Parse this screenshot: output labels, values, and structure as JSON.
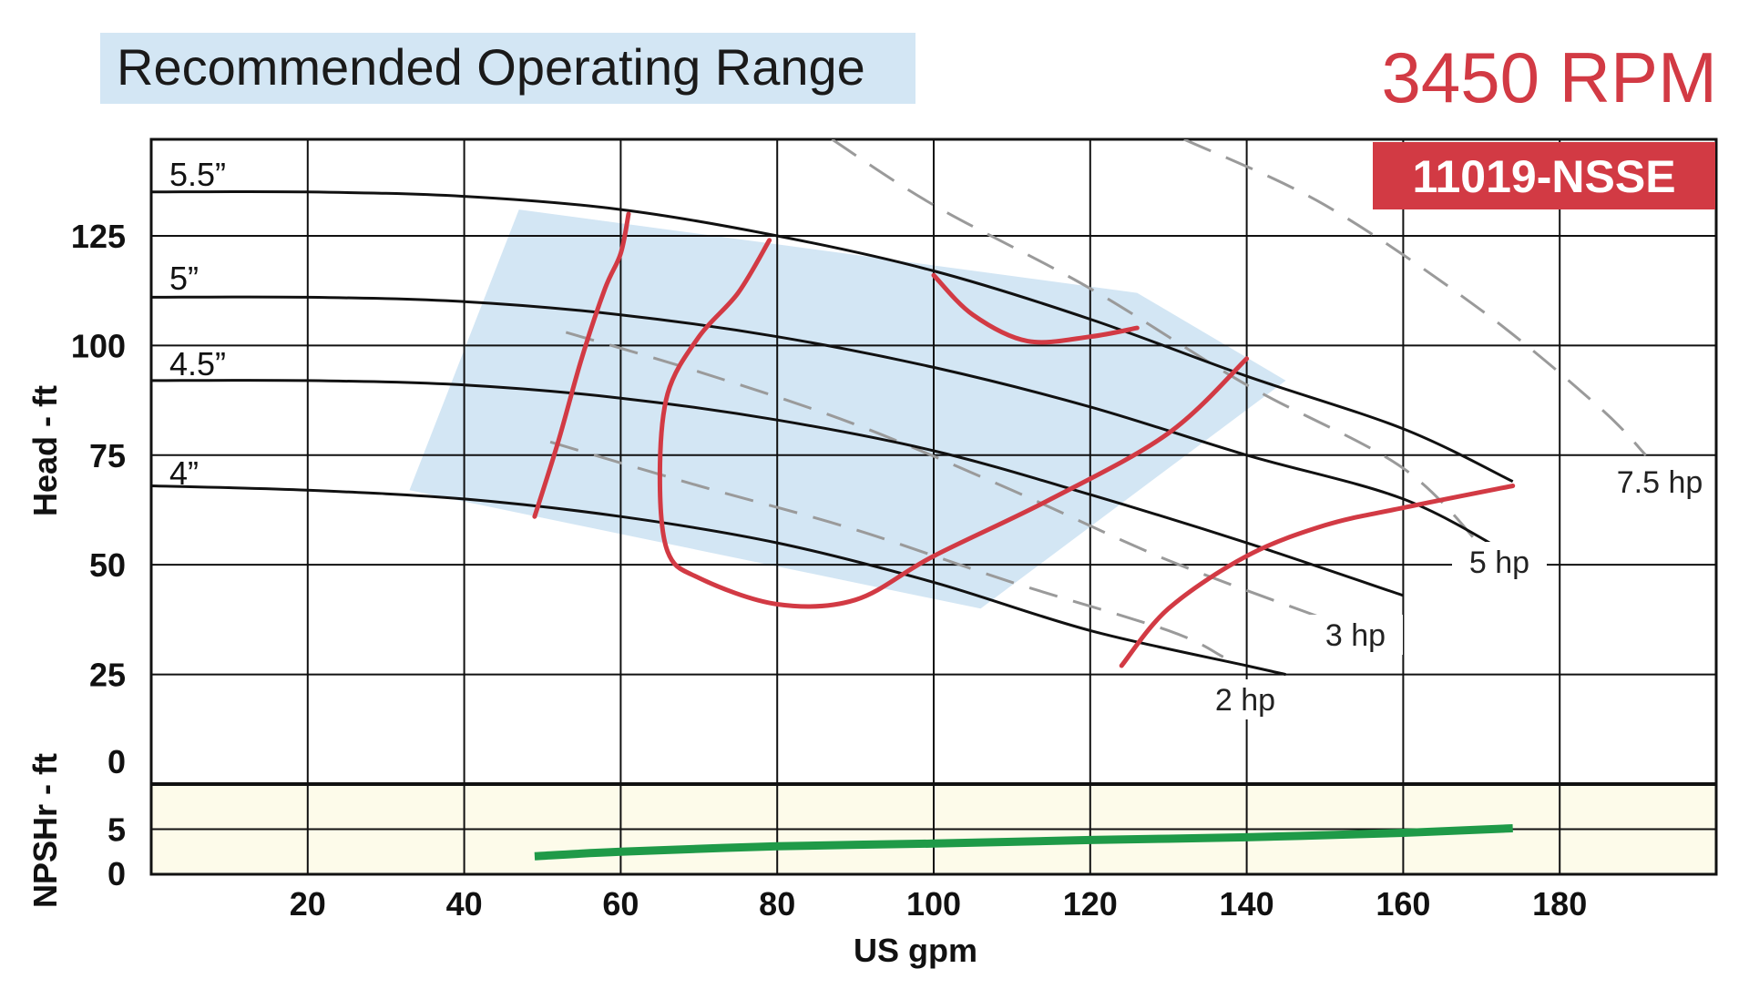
{
  "header": {
    "banner_title": "Recommended Operating Range",
    "rpm": "3450 RPM",
    "model": "11019-NSSE"
  },
  "colors": {
    "banner_bg": "#d3e6f4",
    "operating_region": "#d3e6f4",
    "rpm_text": "#d23a44",
    "model_badge": "#d23a44",
    "efficiency_curves": "#d23a44",
    "impeller_curves": "#111111",
    "power_lines": "#9a9a9a",
    "npsh_bg": "#fdfbea",
    "npsh_curve": "#1f9a48",
    "grid": "#111111"
  },
  "chart_data": {
    "type": "line",
    "xlabel": "US gpm",
    "x_ticks": [
      20,
      40,
      60,
      80,
      100,
      120,
      140,
      160,
      180
    ],
    "xlim": [
      0,
      200
    ],
    "head_panel": {
      "ylabel": "Head - ft",
      "y_ticks": [
        0,
        25,
        50,
        75,
        100,
        125
      ],
      "ylim": [
        0,
        147
      ],
      "grid": true,
      "impeller_curves": [
        {
          "name": "5.5”",
          "points": [
            [
              0,
              135
            ],
            [
              20,
              135
            ],
            [
              40,
              134
            ],
            [
              60,
              131
            ],
            [
              80,
              125
            ],
            [
              100,
              117
            ],
            [
              120,
              106
            ],
            [
              140,
              93
            ],
            [
              160,
              81
            ],
            [
              174,
              69
            ]
          ]
        },
        {
          "name": "5”",
          "points": [
            [
              0,
              111
            ],
            [
              20,
              111
            ],
            [
              40,
              110
            ],
            [
              60,
              107
            ],
            [
              80,
              102
            ],
            [
              100,
              95
            ],
            [
              120,
              86
            ],
            [
              140,
              75
            ],
            [
              160,
              65
            ],
            [
              174,
              52
            ]
          ]
        },
        {
          "name": "4.5”",
          "points": [
            [
              0,
              92
            ],
            [
              20,
              92
            ],
            [
              40,
              91
            ],
            [
              60,
              88
            ],
            [
              80,
              83
            ],
            [
              100,
              76
            ],
            [
              120,
              66
            ],
            [
              140,
              55
            ],
            [
              160,
              43
            ]
          ]
        },
        {
          "name": "4”",
          "points": [
            [
              0,
              68
            ],
            [
              20,
              67
            ],
            [
              40,
              65
            ],
            [
              60,
              61
            ],
            [
              80,
              55
            ],
            [
              100,
              46
            ],
            [
              120,
              35
            ],
            [
              140,
              27
            ],
            [
              145,
              25
            ]
          ]
        }
      ],
      "power_lines": [
        {
          "name": "2 hp",
          "points": [
            [
              51,
              78
            ],
            [
              70,
              68
            ],
            [
              90,
              58
            ],
            [
              110,
              46
            ],
            [
              130,
              35
            ],
            [
              137,
              29
            ]
          ]
        },
        {
          "name": "3 hp",
          "points": [
            [
              53,
              103
            ],
            [
              70,
              94
            ],
            [
              90,
              82
            ],
            [
              110,
              67
            ],
            [
              130,
              51
            ],
            [
              151,
              37
            ]
          ]
        },
        {
          "name": "5 hp",
          "points": [
            [
              87,
              147
            ],
            [
              100,
              132
            ],
            [
              120,
              113
            ],
            [
              140,
              91
            ],
            [
              160,
              72
            ],
            [
              171,
              52
            ]
          ]
        },
        {
          "name": "7.5 hp",
          "points": [
            [
              132,
              147
            ],
            [
              150,
              132
            ],
            [
              170,
              108
            ],
            [
              185,
              86
            ],
            [
              191,
              75
            ]
          ]
        }
      ],
      "efficiency_curves": [
        {
          "points": [
            [
              49,
              61
            ],
            [
              52,
              78
            ],
            [
              55,
              97
            ],
            [
              58,
              113
            ],
            [
              60,
              121
            ],
            [
              61,
              130
            ]
          ]
        },
        {
          "points": [
            [
              79,
              124
            ],
            [
              75,
              112
            ],
            [
              70,
              102
            ],
            [
              66,
              89
            ],
            [
              65,
              70
            ],
            [
              66,
              53
            ],
            [
              70,
              47
            ],
            [
              80,
              41
            ],
            [
              90,
              42
            ],
            [
              100,
              52
            ],
            [
              115,
              65
            ],
            [
              130,
              80
            ],
            [
              140,
              97
            ]
          ]
        },
        {
          "points": [
            [
              100,
              116
            ],
            [
              105,
              107
            ],
            [
              112,
              101
            ],
            [
              120,
              102
            ],
            [
              126,
              104
            ]
          ]
        },
        {
          "points": [
            [
              124,
              27
            ],
            [
              130,
              40
            ],
            [
              140,
              52
            ],
            [
              150,
              59
            ],
            [
              160,
              63
            ],
            [
              174,
              68
            ]
          ]
        }
      ],
      "operating_region": [
        [
          33,
          67
        ],
        [
          47,
          131
        ],
        [
          126,
          112
        ],
        [
          145,
          92
        ],
        [
          106,
          40
        ]
      ],
      "labels": [
        "5.5”",
        "5”",
        "4.5”",
        "4”",
        "2 hp",
        "3 hp",
        "5 hp",
        "7.5 hp"
      ]
    },
    "npsh_panel": {
      "ylabel": "NPSHr - ft",
      "y_ticks": [
        0,
        5
      ],
      "ylim": [
        0,
        10
      ],
      "series": [
        {
          "points": [
            [
              49,
              2
            ],
            [
              60,
              2.5
            ],
            [
              80,
              3.1
            ],
            [
              100,
              3.4
            ],
            [
              120,
              3.8
            ],
            [
              140,
              4.1
            ],
            [
              160,
              4.6
            ],
            [
              174,
              5.1
            ]
          ]
        }
      ]
    }
  }
}
